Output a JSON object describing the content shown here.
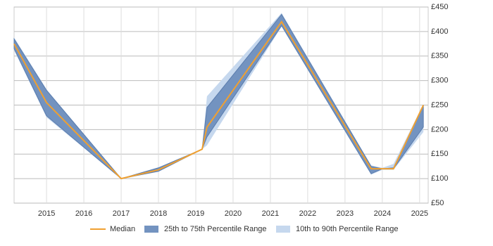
{
  "chart_data": {
    "type": "line",
    "x": [
      2014.13,
      2015.0,
      2017.0,
      2018.0,
      2019.17,
      2019.3,
      2021.3,
      2023.7,
      2024.0,
      2024.3,
      2025.1
    ],
    "series": [
      {
        "name": "Median",
        "color": "#f0a030",
        "values": [
          375,
          255,
          100,
          118,
          160,
          205,
          420,
          120,
          120,
          120,
          250
        ]
      },
      {
        "name": "25th to 75th Percentile Range",
        "color": "#7393c0",
        "low": [
          365,
          228,
          100,
          115,
          160,
          185,
          412,
          110,
          120,
          120,
          205
        ],
        "high": [
          385,
          280,
          100,
          122,
          160,
          245,
          435,
          125,
          120,
          122,
          250
        ]
      },
      {
        "name": "10th to 90th Percentile Range",
        "color": "#c6d8ee",
        "low": [
          362,
          225,
          100,
          114,
          160,
          168,
          410,
          108,
          118,
          118,
          195
        ],
        "high": [
          388,
          282,
          100,
          123,
          160,
          268,
          438,
          127,
          122,
          130,
          252
        ]
      }
    ],
    "xlim": [
      2014.13,
      2025.23
    ],
    "xticks": [
      2015,
      2016,
      2017,
      2018,
      2019,
      2020,
      2021,
      2022,
      2023,
      2024,
      2025
    ],
    "ylim": [
      50,
      450
    ],
    "yticks": [
      {
        "value": 50,
        "label": "£50"
      },
      {
        "value": 100,
        "label": "£100"
      },
      {
        "value": 150,
        "label": "£150"
      },
      {
        "value": 200,
        "label": "£200"
      },
      {
        "value": 250,
        "label": "£250"
      },
      {
        "value": 300,
        "label": "£300"
      },
      {
        "value": 350,
        "label": "£350"
      },
      {
        "value": 400,
        "label": "£400"
      },
      {
        "value": 450,
        "label": "£450"
      }
    ],
    "grid": true,
    "legend": "bottom"
  }
}
